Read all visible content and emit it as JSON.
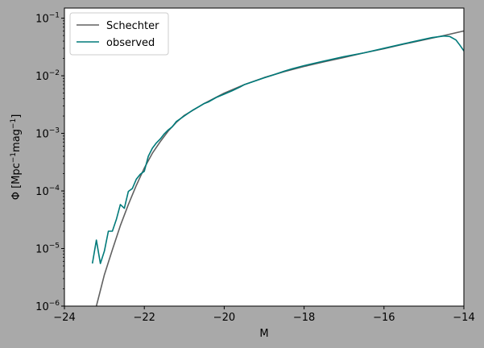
{
  "chart_data": {
    "type": "line",
    "xlabel": "M",
    "ylabel": {
      "base": "Φ [Mpc",
      "sup1": "−1",
      "mid": "mag",
      "sup2": "−1",
      "end": "]"
    },
    "xlim": [
      -24,
      -14
    ],
    "ylim": [
      1e-06,
      0.15
    ],
    "yscale": "log",
    "grid": false,
    "legend_position": "top-left",
    "x_ticks": [
      {
        "value": -24,
        "label": "−24"
      },
      {
        "value": -22,
        "label": "−22"
      },
      {
        "value": -20,
        "label": "−20"
      },
      {
        "value": -18,
        "label": "−18"
      },
      {
        "value": -16,
        "label": "−16"
      },
      {
        "value": -14,
        "label": "−14"
      }
    ],
    "y_ticks": [
      {
        "value": 1e-06,
        "base": "10",
        "exp": "−6"
      },
      {
        "value": 1e-05,
        "base": "10",
        "exp": "−5"
      },
      {
        "value": 0.0001,
        "base": "10",
        "exp": "−4"
      },
      {
        "value": 0.001,
        "base": "10",
        "exp": "−3"
      },
      {
        "value": 0.01,
        "base": "10",
        "exp": "−2"
      },
      {
        "value": 0.1,
        "base": "10",
        "exp": "−1"
      }
    ],
    "series": [
      {
        "name": "Schechter",
        "color": "#616161",
        "x": [
          -23.2,
          -23.0,
          -22.8,
          -22.6,
          -22.4,
          -22.2,
          -22.0,
          -21.8,
          -21.6,
          -21.4,
          -21.2,
          -21.0,
          -20.5,
          -20.0,
          -19.5,
          -19.0,
          -18.5,
          -18.0,
          -17.5,
          -17.0,
          -16.5,
          -16.0,
          -15.5,
          -15.0,
          -14.5,
          -14.0
        ],
        "y": [
          1e-06,
          3.5e-06,
          9.5e-06,
          2.5e-05,
          5.8e-05,
          0.000125,
          0.00025,
          0.00045,
          0.00072,
          0.0011,
          0.00155,
          0.00205,
          0.0033,
          0.005,
          0.007,
          0.0093,
          0.0118,
          0.0145,
          0.0175,
          0.0208,
          0.025,
          0.0295,
          0.0355,
          0.042,
          0.05,
          0.06
        ]
      },
      {
        "name": "observed",
        "color": "#007a7a",
        "x": [
          -23.3,
          -23.2,
          -23.1,
          -23.0,
          -22.9,
          -22.8,
          -22.7,
          -22.6,
          -22.5,
          -22.4,
          -22.3,
          -22.2,
          -22.1,
          -22.0,
          -21.9,
          -21.8,
          -21.7,
          -21.6,
          -21.5,
          -21.4,
          -21.3,
          -21.2,
          -21.0,
          -20.8,
          -20.6,
          -20.5,
          -20.4,
          -20.2,
          -20.0,
          -19.8,
          -19.6,
          -19.5,
          -19.3,
          -19.0,
          -18.8,
          -18.5,
          -18.3,
          -18.0,
          -17.5,
          -17.0,
          -16.5,
          -16.0,
          -15.5,
          -15.0,
          -14.8,
          -14.5,
          -14.35,
          -14.2,
          -14.1,
          -14.0
        ],
        "y": [
          5.5e-06,
          1.4e-05,
          5.5e-06,
          9e-06,
          2e-05,
          2e-05,
          3.2e-05,
          5.8e-05,
          5e-05,
          9.8e-05,
          0.00011,
          0.00016,
          0.000195,
          0.00022,
          0.0004,
          0.00055,
          0.00068,
          0.0008,
          0.00098,
          0.00115,
          0.0013,
          0.0016,
          0.002,
          0.0025,
          0.003,
          0.0033,
          0.0035,
          0.0042,
          0.0048,
          0.0055,
          0.0064,
          0.007,
          0.0078,
          0.0092,
          0.0102,
          0.012,
          0.0132,
          0.015,
          0.018,
          0.0215,
          0.025,
          0.03,
          0.036,
          0.043,
          0.046,
          0.049,
          0.048,
          0.042,
          0.034,
          0.027
        ]
      }
    ]
  }
}
